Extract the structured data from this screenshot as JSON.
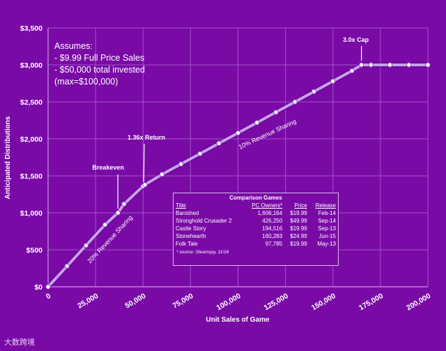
{
  "chart_data": {
    "type": "line",
    "xlabel": "Unit Sales of Game",
    "ylabel": "Anticipated Distributions",
    "xlim": [
      0,
      200000
    ],
    "ylim": [
      0,
      3500
    ],
    "x_ticks": [
      "0",
      "25,000",
      "50,000",
      "75,000",
      "100,000",
      "125,000",
      "150,000",
      "175,000",
      "200,000"
    ],
    "y_ticks": [
      "$0",
      "$500",
      "$1,000",
      "$1,500",
      "$2,000",
      "$2,500",
      "$3,000",
      "$3,500"
    ],
    "grid": true,
    "series": [
      {
        "x": [
          0,
          10000,
          20000,
          30000,
          36765,
          40000,
          50000,
          51000,
          60000,
          70000,
          80000,
          90000,
          100000,
          110000,
          120000,
          130000,
          140000,
          150000,
          160000,
          165000,
          170000,
          180000,
          190000,
          200000
        ],
        "y": [
          0,
          280,
          560,
          840,
          1000,
          1120,
          1360,
          1380,
          1520,
          1660,
          1800,
          1940,
          2080,
          2220,
          2360,
          2500,
          2640,
          2780,
          2920,
          3000,
          3000,
          3000,
          3000,
          3000
        ]
      }
    ],
    "annotations": [
      {
        "text": "Breakeven",
        "x": 36765,
        "y": 1000
      },
      {
        "text": "1.36x Return",
        "x": 50000,
        "y": 1360
      },
      {
        "text": "3.0x Cap",
        "x": 165000,
        "y": 3000
      },
      {
        "text": "10% Revenue Sharing"
      },
      {
        "text": "20% Revenue Sharing"
      }
    ]
  },
  "assumptions": {
    "heading": "Assumes:",
    "line1": "- $9.99 Full Price Sales",
    "line2": "- $50,000 total invested",
    "line3": "(max=$100,000)"
  },
  "comparison": {
    "title": "Comparison Games",
    "headers": {
      "title": "Title",
      "owners": "PC Owners*",
      "price": "Price",
      "release": "Release"
    },
    "rows": [
      {
        "title": "Banished",
        "owners": "1,606,164",
        "price": "$19.99",
        "release": "Feb-14"
      },
      {
        "title": "Stronghold Crusader 2",
        "owners": "426,250",
        "price": "$49.99",
        "release": "Sep-14"
      },
      {
        "title": "Castle Story",
        "owners": "194,516",
        "price": "$19.99",
        "release": "Sep-13"
      },
      {
        "title": "Stonehearth",
        "owners": "160,283",
        "price": "$24.99",
        "release": "Jun-15"
      },
      {
        "title": "Folk Tale",
        "owners": "97,785",
        "price": "$19.99",
        "release": "May-13"
      }
    ],
    "note": "* source: Steamspy, 11/16"
  },
  "watermark": "大数跨境",
  "colors": {
    "background": "#7a0aa6",
    "line": "#c9a0f0",
    "marker_fill": "#ffffff",
    "grid": "#a055cc"
  }
}
